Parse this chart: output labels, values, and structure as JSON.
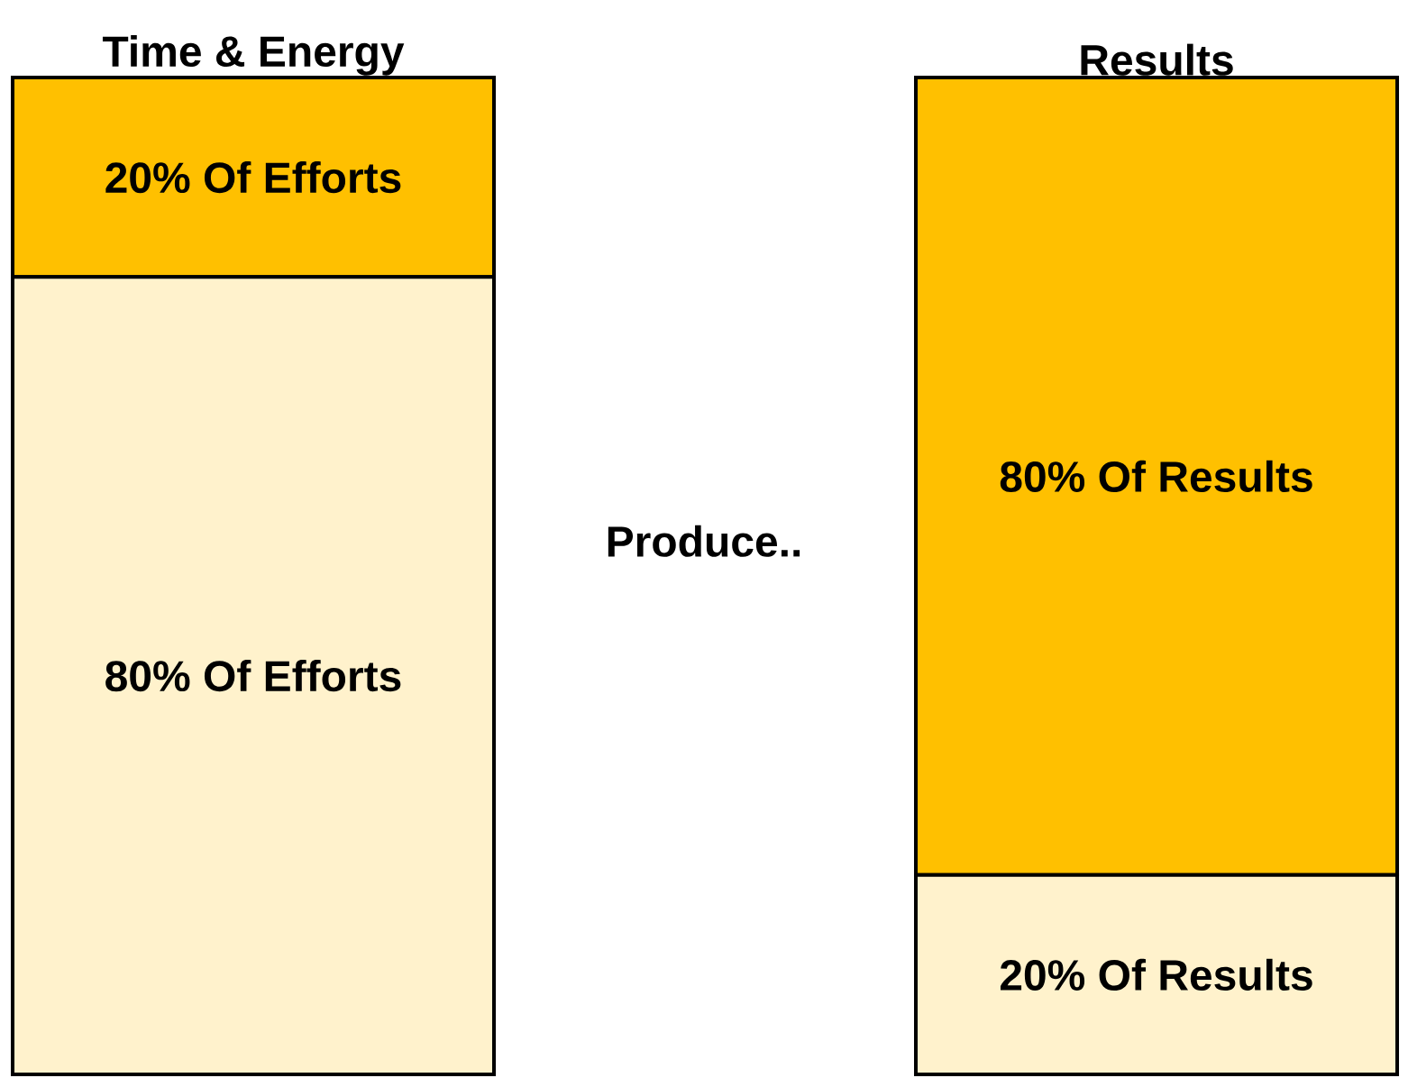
{
  "chart_data": {
    "type": "bar",
    "stacked": true,
    "categories": [
      "Time & Energy",
      "Results"
    ],
    "series": [
      {
        "color": "#fff2cc",
        "values": [
          80,
          20
        ],
        "value_labels": [
          "80% Of Efforts",
          "20% Of Results"
        ]
      },
      {
        "color": "#ffc000",
        "values": [
          20,
          80
        ],
        "value_labels": [
          "20% Of Efforts",
          "80% Of Results"
        ]
      }
    ],
    "tick_labels": "x",
    "annotations": [
      "Produce.."
    ]
  }
}
